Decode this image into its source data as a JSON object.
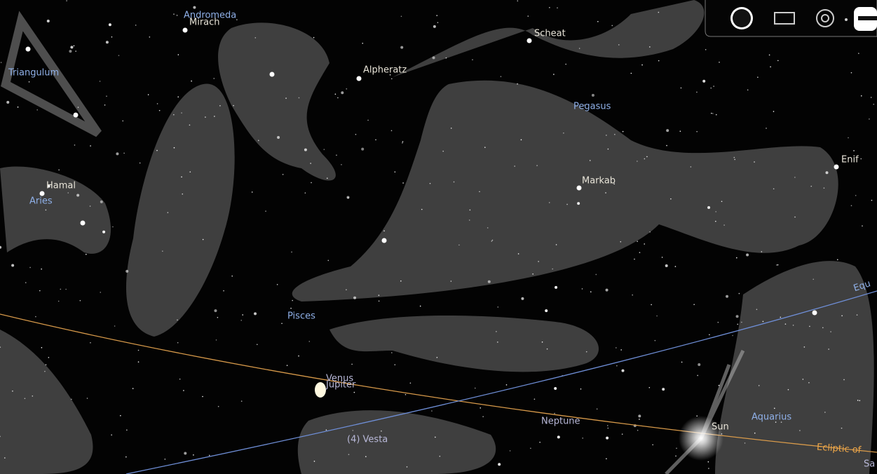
{
  "constellations": [
    "Andromeda",
    "Triangulum",
    "Pegasus",
    "Aries",
    "Pisces",
    "Aquarius"
  ],
  "stars": [
    "Mirach",
    "Scheat",
    "Alpheratz",
    "Enif",
    "Markab",
    "Hamal"
  ],
  "planets": [
    "Venus",
    "Jupiter",
    "Neptune",
    "Sun",
    "(4) Vesta",
    "Sa"
  ],
  "lines": [
    "Ecliptic of",
    "Equ"
  ]
}
